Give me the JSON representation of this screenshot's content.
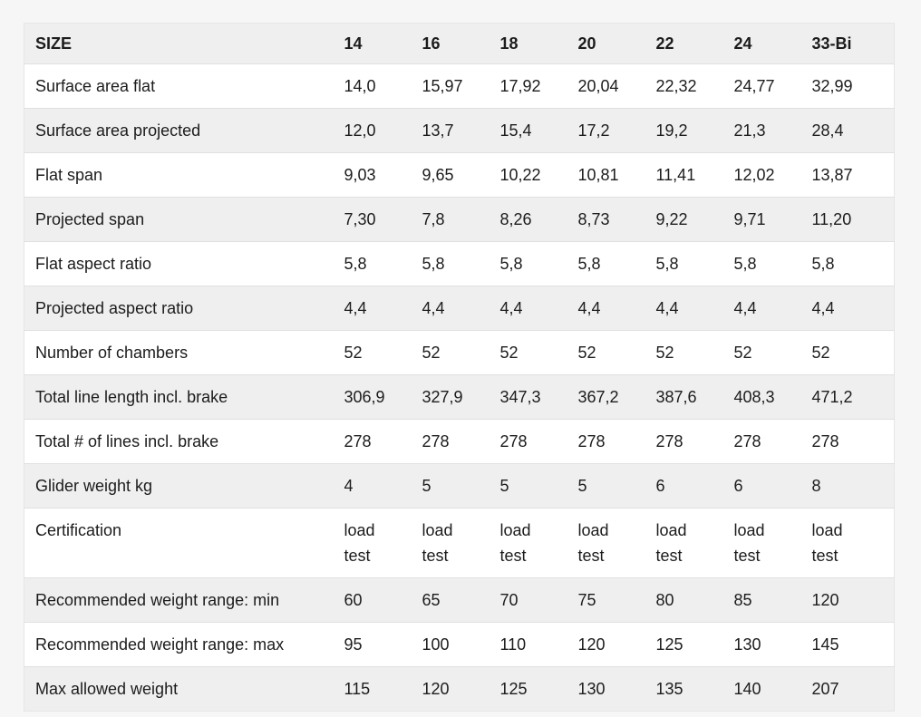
{
  "chart_data": {
    "type": "table",
    "title": "Paraglider size specification table",
    "columns": [
      "SIZE",
      "14",
      "16",
      "18",
      "20",
      "22",
      "24",
      "33-Bi"
    ],
    "rows": [
      [
        "Surface area flat",
        "14,0",
        "15,97",
        "17,92",
        "20,04",
        "22,32",
        "24,77",
        "32,99"
      ],
      [
        "Surface area projected",
        "12,0",
        "13,7",
        "15,4",
        "17,2",
        "19,2",
        "21,3",
        "28,4"
      ],
      [
        "Flat span",
        "9,03",
        "9,65",
        "10,22",
        "10,81",
        "11,41",
        "12,02",
        "13,87"
      ],
      [
        "Projected span",
        "7,30",
        "7,8",
        "8,26",
        "8,73",
        "9,22",
        "9,71",
        "11,20"
      ],
      [
        "Flat aspect ratio",
        "5,8",
        "5,8",
        "5,8",
        "5,8",
        "5,8",
        "5,8",
        "5,8"
      ],
      [
        "Projected aspect ratio",
        "4,4",
        "4,4",
        "4,4",
        "4,4",
        "4,4",
        "4,4",
        "4,4"
      ],
      [
        "Number of chambers",
        "52",
        "52",
        "52",
        "52",
        "52",
        "52",
        "52"
      ],
      [
        "Total line length incl. brake",
        "306,9",
        "327,9",
        "347,3",
        "367,2",
        "387,6",
        "408,3",
        "471,2"
      ],
      [
        "Total # of lines incl. brake",
        "278",
        "278",
        "278",
        "278",
        "278",
        "278",
        "278"
      ],
      [
        "Glider weight kg",
        "4",
        "5",
        "5",
        "5",
        "6",
        "6",
        "8"
      ],
      [
        "Certification",
        "load test",
        "load test",
        "load test",
        "load test",
        "load test",
        "load test",
        "load test"
      ],
      [
        "Recommended weight range: min",
        "60",
        "65",
        "70",
        "75",
        "80",
        "85",
        "120"
      ],
      [
        "Recommended weight range: max",
        "95",
        "100",
        "110",
        "120",
        "125",
        "130",
        "145"
      ],
      [
        "Max allowed weight",
        "115",
        "120",
        "125",
        "130",
        "135",
        "140",
        "207"
      ]
    ],
    "layout_hints": {
      "striped": true,
      "header_shaded": true,
      "grid": "horizontal-only"
    }
  },
  "colors": {
    "page_background": "#f6f6f7",
    "stripe_background": "#efefef",
    "row_background": "#ffffff",
    "border": "#e0e0e0",
    "text": "#1c1c1c"
  }
}
